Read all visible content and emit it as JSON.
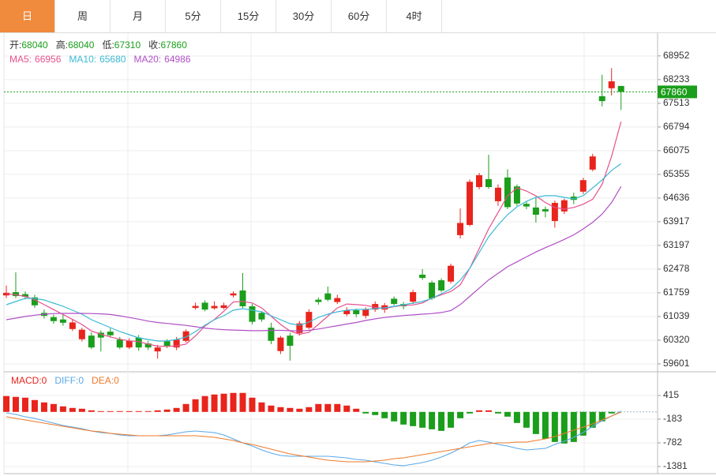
{
  "tabs": [
    "日",
    "周",
    "月",
    "5分",
    "15分",
    "30分",
    "60分",
    "4时"
  ],
  "active_tab": 0,
  "chart_data": [
    {
      "type": "candlestick",
      "info": [
        {
          "label": "开:",
          "value": 68040
        },
        {
          "label": "高:",
          "value": 68040
        },
        {
          "label": "低:",
          "value": 67310
        },
        {
          "label": "收:",
          "value": 67860
        }
      ],
      "open": [
        61680,
        61780,
        61720,
        61620,
        61150,
        61020,
        60950,
        60660,
        60350,
        60460,
        60550,
        60580,
        60340,
        60100,
        60400,
        60220,
        59980,
        60290,
        60100,
        60300,
        61300,
        61460,
        61290,
        61300,
        61680,
        61830,
        61350,
        61150,
        60700,
        59990,
        60460,
        60540,
        60700,
        61550,
        61740,
        61480,
        61110,
        61230,
        61060,
        61250,
        61250,
        61580,
        61420,
        61490,
        62310,
        62070,
        62140,
        62100,
        63510,
        63820,
        64970,
        65210,
        64540,
        65260,
        64990,
        64460,
        64350,
        64300,
        63940,
        64230,
        64680,
        64830,
        65500,
        67730,
        67970,
        68040
      ],
      "high": [
        61980,
        62380,
        61800,
        61700,
        61250,
        61100,
        61100,
        60950,
        60700,
        60560,
        60620,
        60680,
        60420,
        60380,
        60480,
        60300,
        60180,
        60350,
        60420,
        60650,
        61460,
        61530,
        61500,
        61460,
        61800,
        62360,
        61420,
        61200,
        60850,
        60450,
        60550,
        60900,
        61260,
        61620,
        61950,
        61700,
        61320,
        61280,
        61320,
        61500,
        61450,
        61650,
        61480,
        61850,
        62480,
        62130,
        62200,
        62640,
        64320,
        65200,
        65400,
        65950,
        65050,
        65510,
        65050,
        64550,
        64650,
        64380,
        64560,
        64620,
        64800,
        65250,
        65980,
        68380,
        68580,
        68040
      ],
      "low": [
        61600,
        61600,
        61560,
        61300,
        60980,
        60820,
        60760,
        60600,
        60280,
        60050,
        59980,
        60400,
        60050,
        60050,
        60000,
        60020,
        59760,
        60080,
        60020,
        60250,
        61250,
        61200,
        61250,
        61260,
        61620,
        61300,
        60800,
        60880,
        60200,
        59900,
        59700,
        60460,
        60650,
        61400,
        61500,
        61420,
        61050,
        61020,
        60980,
        61180,
        61150,
        61380,
        61260,
        61420,
        62150,
        61540,
        61780,
        62040,
        63410,
        63780,
        64900,
        64920,
        64400,
        64300,
        64400,
        64300,
        63890,
        64050,
        63740,
        64150,
        64450,
        64760,
        65450,
        67420,
        67750,
        67310
      ],
      "close": [
        61760,
        61660,
        61640,
        61380,
        61060,
        60900,
        60850,
        60860,
        60640,
        60100,
        60400,
        60470,
        60100,
        60300,
        60100,
        60100,
        60100,
        60150,
        60340,
        60590,
        61360,
        61250,
        61360,
        61380,
        61740,
        61350,
        60880,
        60950,
        60300,
        60400,
        60150,
        60830,
        61180,
        61480,
        61550,
        61600,
        61230,
        61110,
        61260,
        61420,
        61380,
        61420,
        61350,
        61780,
        62210,
        61590,
        61830,
        62580,
        63880,
        65130,
        65330,
        64970,
        64950,
        64360,
        64470,
        64380,
        64130,
        64230,
        64490,
        64570,
        64580,
        65180,
        65900,
        67580,
        68180,
        67860
      ],
      "up_color": "#e8241c",
      "down_color": "#1b9e1b",
      "series": [
        {
          "name": "MA5:",
          "color": "#e5508c",
          "values": [
            61730,
            61700,
            61650,
            61550,
            61400,
            61250,
            61100,
            60950,
            60800,
            60600,
            60500,
            60420,
            60350,
            60300,
            60280,
            60200,
            60140,
            60130,
            60150,
            60200,
            60450,
            60750,
            60950,
            61200,
            61480,
            61500,
            61450,
            61300,
            61050,
            60800,
            60600,
            60500,
            60560,
            60800,
            61050,
            61300,
            61420,
            61400,
            61380,
            61320,
            61280,
            61340,
            61380,
            61390,
            61450,
            61600,
            61700,
            61800,
            62000,
            62500,
            63100,
            63700,
            64200,
            64700,
            64950,
            64850,
            64700,
            64500,
            64350,
            64300,
            64350,
            64450,
            64600,
            65050,
            65900,
            66956
          ]
        },
        {
          "name": "MA10:",
          "color": "#3bb9d6",
          "values": [
            61399,
            61495,
            61590,
            61590,
            61543,
            61447,
            61351,
            61231,
            61111,
            60943,
            60823,
            60704,
            60584,
            60488,
            60392,
            60344,
            60296,
            60296,
            60344,
            60416,
            60584,
            60776,
            60943,
            61063,
            61231,
            61279,
            61231,
            61183,
            61063,
            60943,
            60823,
            60776,
            60872,
            61015,
            61111,
            61183,
            61231,
            61255,
            61255,
            61279,
            61303,
            61351,
            61399,
            61447,
            61495,
            61590,
            61734,
            61878,
            62142,
            62501,
            62981,
            63460,
            63820,
            64131,
            64371,
            64539,
            64659,
            64707,
            64707,
            64659,
            64611,
            64707,
            64946,
            65186,
            65474,
            65680
          ]
        },
        {
          "name": "MA20:",
          "color": "#b04fc6",
          "values": [
            60943,
            60990,
            61040,
            61080,
            61110,
            61130,
            61135,
            61135,
            61135,
            61130,
            61120,
            61100,
            61060,
            61010,
            60960,
            60900,
            60860,
            60830,
            60800,
            60770,
            60730,
            60690,
            60660,
            60640,
            60630,
            60620,
            60610,
            60610,
            60620,
            60620,
            60610,
            60600,
            60620,
            60660,
            60710,
            60760,
            60810,
            60860,
            60920,
            60970,
            61010,
            61040,
            61070,
            61090,
            61110,
            61130,
            61160,
            61220,
            61400,
            61650,
            61900,
            62150,
            62350,
            62550,
            62700,
            62850,
            63000,
            63130,
            63250,
            63380,
            63520,
            63700,
            63900,
            64150,
            64500,
            64986
          ]
        }
      ],
      "last_price": 67860,
      "last_color": "#1b9e1b",
      "ylim": [
        59385,
        69643
      ],
      "yticks": [
        68952,
        68233,
        67513,
        66794,
        66075,
        65355,
        64636,
        63917,
        63197,
        62478,
        61759,
        61039,
        60320,
        59601
      ],
      "grid": true
    },
    {
      "type": "bar",
      "series": [
        {
          "name": "MACD:",
          "legend_value": 0,
          "color": "#e8241c",
          "up_color": "#e8241c",
          "down_color": "#1b9e1b",
          "type": "bar",
          "values": [
            400,
            380,
            360,
            300,
            240,
            200,
            140,
            100,
            80,
            40,
            20,
            20,
            20,
            20,
            20,
            20,
            40,
            60,
            100,
            200,
            320,
            400,
            440,
            460,
            480,
            480,
            360,
            240,
            160,
            120,
            100,
            80,
            120,
            200,
            200,
            200,
            160,
            80,
            -40,
            -80,
            -160,
            -240,
            -320,
            -360,
            -400,
            -440,
            -480,
            -400,
            -160,
            -40,
            40,
            40,
            -40,
            -120,
            -280,
            -400,
            -560,
            -680,
            -760,
            -800,
            -760,
            -600,
            -400,
            -240,
            -40,
            0
          ]
        },
        {
          "name": "DIFF:",
          "legend_value": 0,
          "color": "#5aa8e8",
          "type": "line",
          "values": [
            -24,
            -64,
            -124,
            -164,
            -224,
            -284,
            -343,
            -383,
            -423,
            -483,
            -523,
            -543,
            -583,
            -603,
            -603,
            -603,
            -603,
            -583,
            -543,
            -503,
            -483,
            -503,
            -523,
            -583,
            -683,
            -783,
            -862,
            -962,
            -1042,
            -1102,
            -1122,
            -1122,
            -1122,
            -1122,
            -1122,
            -1142,
            -1162,
            -1202,
            -1222,
            -1262,
            -1302,
            -1341,
            -1361,
            -1321,
            -1282,
            -1222,
            -1142,
            -1042,
            -922,
            -783,
            -723,
            -763,
            -823,
            -862,
            -922,
            -962,
            -942,
            -922,
            -823,
            -743,
            -643,
            -523,
            -363,
            -224,
            -104,
            16
          ]
        },
        {
          "name": "DEA:",
          "legend_value": 0,
          "color": "#f07a2a",
          "type": "line",
          "values": [
            -124,
            -164,
            -204,
            -244,
            -284,
            -324,
            -363,
            -403,
            -443,
            -483,
            -503,
            -543,
            -563,
            -583,
            -603,
            -603,
            -603,
            -603,
            -603,
            -603,
            -603,
            -623,
            -643,
            -683,
            -723,
            -783,
            -822,
            -882,
            -942,
            -1002,
            -1062,
            -1102,
            -1142,
            -1182,
            -1222,
            -1242,
            -1262,
            -1262,
            -1262,
            -1242,
            -1222,
            -1182,
            -1162,
            -1122,
            -1082,
            -1042,
            -1002,
            -962,
            -922,
            -882,
            -842,
            -802,
            -783,
            -783,
            -763,
            -763,
            -723,
            -683,
            -623,
            -543,
            -463,
            -383,
            -304,
            -204,
            -104,
            -4
          ]
        }
      ],
      "ylim": [
        -1561,
        994
      ],
      "yticks": [
        415,
        -183,
        -782,
        -1381
      ],
      "grid": true
    }
  ]
}
